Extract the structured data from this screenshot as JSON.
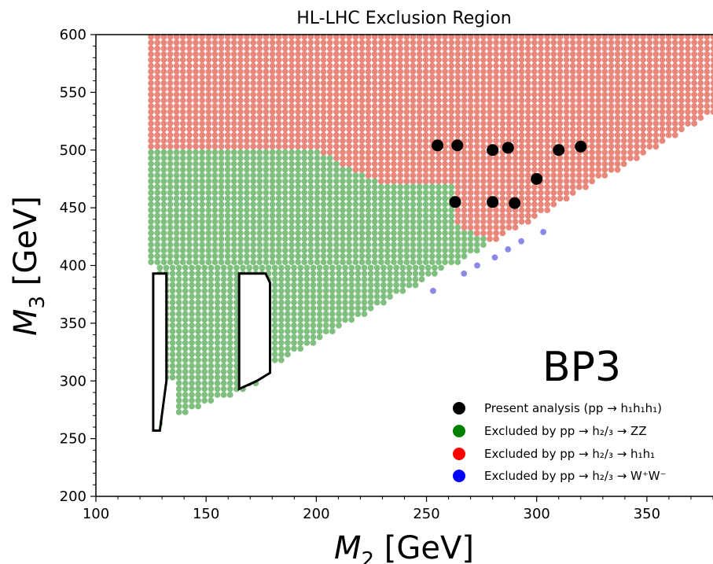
{
  "chart_data": {
    "type": "scatter",
    "title": "HL-LHC Exclusion Region",
    "xlabel_main": "M",
    "xlabel_sub": "2",
    "xlabel_unit": " [GeV]",
    "ylabel_main": "M",
    "ylabel_sub": "3",
    "ylabel_unit": " [GeV]",
    "benchmark_label": "BP3",
    "xlim": [
      100,
      380
    ],
    "ylim": [
      200,
      600
    ],
    "xticks": [
      "100",
      "150",
      "200",
      "250",
      "300",
      "350"
    ],
    "yticks": [
      "200",
      "250",
      "300",
      "350",
      "400",
      "450",
      "500",
      "550",
      "600"
    ],
    "colors": {
      "green_points": "#7fbf7f",
      "red_points": "#e8877a",
      "blue_points": "#8a88e8",
      "black_points": "#000000",
      "legend_green": "#008000",
      "legend_red": "#ff0000",
      "legend_blue": "#0000ff"
    },
    "legend": [
      {
        "marker": "black",
        "text": "Present analysis (pp → h₁h₁h₁)"
      },
      {
        "marker": "green",
        "text": "Excluded by pp → h₂/₃ → ZZ"
      },
      {
        "marker": "red",
        "text": "Excluded by pp → h₂/₃ → h₁h₁"
      },
      {
        "marker": "blue",
        "text": "Excluded by pp → h₂/₃ → W⁺W⁻"
      }
    ],
    "present_analysis_points": [
      [
        255,
        504
      ],
      [
        264,
        504
      ],
      [
        280,
        500
      ],
      [
        287,
        502
      ],
      [
        310,
        500
      ],
      [
        320,
        503
      ],
      [
        300,
        475
      ],
      [
        263,
        455
      ],
      [
        280,
        455
      ],
      [
        290,
        454
      ]
    ],
    "blue_points": [
      [
        253,
        378
      ],
      [
        267,
        393
      ],
      [
        273,
        400
      ],
      [
        281,
        407
      ],
      [
        287,
        414
      ],
      [
        293,
        421
      ],
      [
        303,
        429
      ]
    ],
    "outline_polygons": [
      [
        [
          126,
          393
        ],
        [
          132,
          393
        ],
        [
          132,
          300
        ],
        [
          129,
          257
        ],
        [
          126,
          257
        ]
      ],
      [
        [
          165,
          393
        ],
        [
          177,
          393
        ],
        [
          179,
          385
        ],
        [
          179,
          307
        ],
        [
          173,
          300
        ],
        [
          165,
          293
        ]
      ]
    ]
  }
}
